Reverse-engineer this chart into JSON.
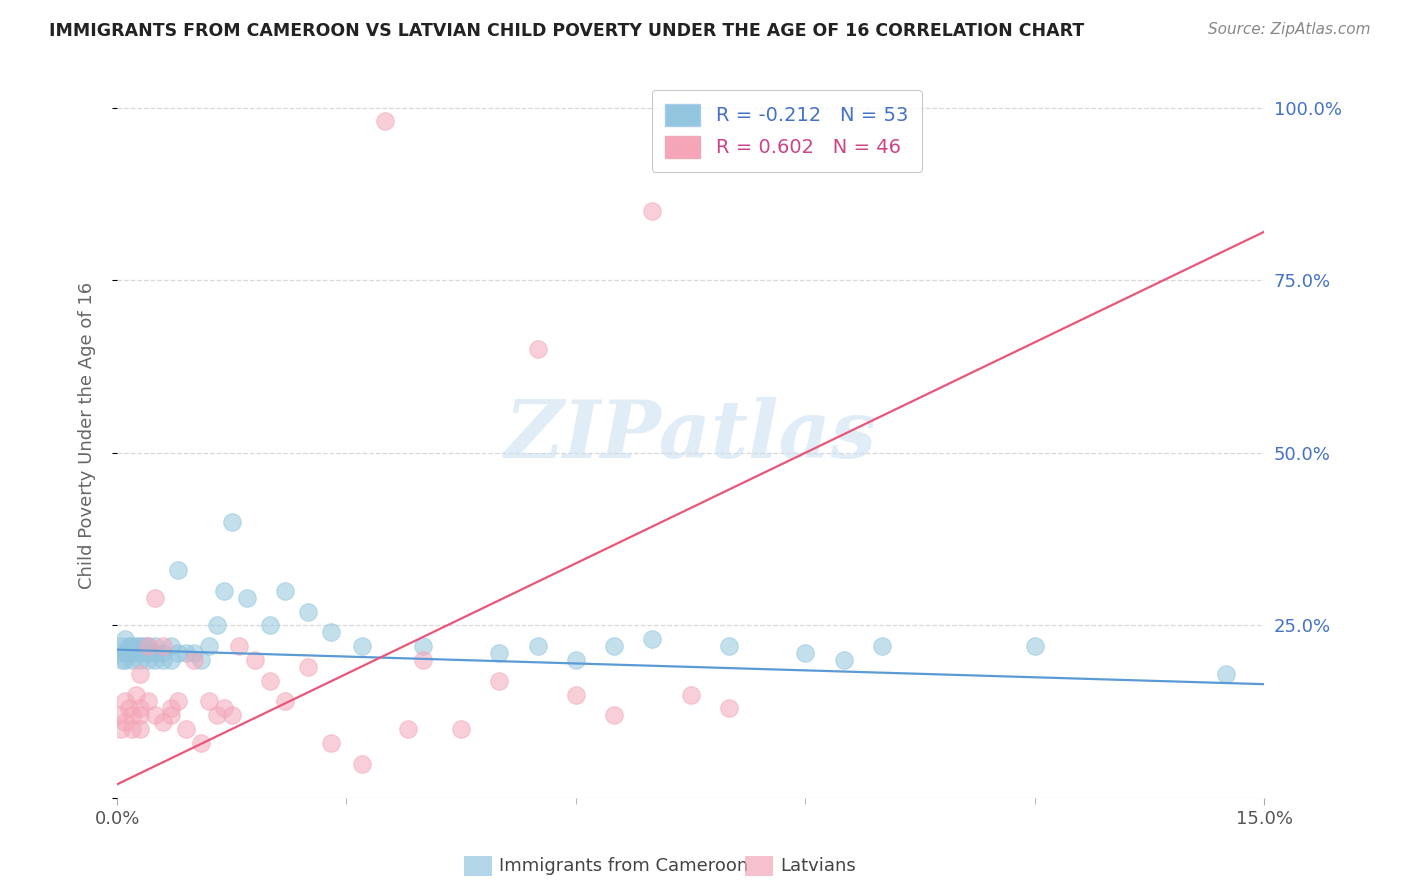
{
  "title": "IMMIGRANTS FROM CAMEROON VS LATVIAN CHILD POVERTY UNDER THE AGE OF 16 CORRELATION CHART",
  "source": "Source: ZipAtlas.com",
  "ylabel_label": "Child Poverty Under the Age of 16",
  "xmin": 0.0,
  "xmax": 0.15,
  "ymin": 0.0,
  "ymax": 1.05,
  "legend1_R": "-0.212",
  "legend1_N": "53",
  "legend2_R": "0.602",
  "legend2_N": "46",
  "color_blue": "#92c5de",
  "color_pink": "#f4a6b8",
  "color_blue_line": "#5b9bd5",
  "color_pink_line": "#e8567a",
  "watermark": "ZIPatlas",
  "blue_line_y0": 0.215,
  "blue_line_y1": 0.165,
  "pink_line_y0": 0.02,
  "pink_line_y1": 0.82,
  "grid_color": "#d8d8d8",
  "right_axis_color": "#4472c4",
  "bx": [
    0.0002,
    0.0005,
    0.0007,
    0.001,
    0.001,
    0.001,
    0.0015,
    0.0018,
    0.002,
    0.002,
    0.002,
    0.0025,
    0.003,
    0.003,
    0.003,
    0.0035,
    0.004,
    0.004,
    0.004,
    0.005,
    0.005,
    0.005,
    0.006,
    0.006,
    0.007,
    0.007,
    0.008,
    0.008,
    0.009,
    0.01,
    0.011,
    0.012,
    0.013,
    0.014,
    0.015,
    0.017,
    0.02,
    0.022,
    0.025,
    0.028,
    0.032,
    0.04,
    0.05,
    0.055,
    0.06,
    0.065,
    0.07,
    0.08,
    0.09,
    0.095,
    0.1,
    0.12,
    0.145
  ],
  "by": [
    0.21,
    0.22,
    0.2,
    0.21,
    0.23,
    0.2,
    0.22,
    0.21,
    0.22,
    0.2,
    0.21,
    0.22,
    0.22,
    0.21,
    0.2,
    0.22,
    0.21,
    0.2,
    0.22,
    0.21,
    0.2,
    0.22,
    0.2,
    0.21,
    0.2,
    0.22,
    0.21,
    0.33,
    0.21,
    0.21,
    0.2,
    0.22,
    0.25,
    0.3,
    0.4,
    0.29,
    0.25,
    0.3,
    0.27,
    0.24,
    0.22,
    0.22,
    0.21,
    0.22,
    0.2,
    0.22,
    0.23,
    0.22,
    0.21,
    0.2,
    0.22,
    0.22,
    0.18
  ],
  "px": [
    0.0002,
    0.0005,
    0.001,
    0.001,
    0.0015,
    0.002,
    0.002,
    0.0025,
    0.003,
    0.003,
    0.003,
    0.003,
    0.004,
    0.004,
    0.005,
    0.005,
    0.006,
    0.006,
    0.007,
    0.007,
    0.008,
    0.009,
    0.01,
    0.011,
    0.012,
    0.013,
    0.014,
    0.015,
    0.016,
    0.018,
    0.02,
    0.022,
    0.025,
    0.028,
    0.032,
    0.035,
    0.038,
    0.04,
    0.045,
    0.05,
    0.055,
    0.06,
    0.065,
    0.07,
    0.075,
    0.08
  ],
  "py": [
    0.12,
    0.1,
    0.14,
    0.11,
    0.13,
    0.12,
    0.1,
    0.15,
    0.13,
    0.1,
    0.12,
    0.18,
    0.14,
    0.22,
    0.12,
    0.29,
    0.11,
    0.22,
    0.12,
    0.13,
    0.14,
    0.1,
    0.2,
    0.08,
    0.14,
    0.12,
    0.13,
    0.12,
    0.22,
    0.2,
    0.17,
    0.14,
    0.19,
    0.08,
    0.05,
    0.98,
    0.1,
    0.2,
    0.1,
    0.17,
    0.65,
    0.15,
    0.12,
    0.85,
    0.15,
    0.13
  ]
}
